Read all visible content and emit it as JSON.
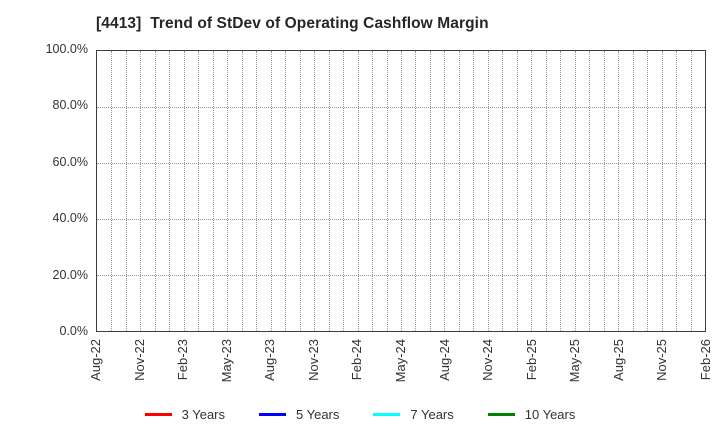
{
  "title": "[4413]  Trend of StDev of Operating Cashflow Margin",
  "chart_data": {
    "type": "line",
    "title": "[4413]  Trend of StDev of Operating Cashflow Margin",
    "x_tick_labels": [
      "Aug-22",
      "Nov-22",
      "Feb-23",
      "May-23",
      "Aug-23",
      "Nov-23",
      "Feb-24",
      "May-24",
      "Aug-24",
      "Nov-24",
      "Feb-25",
      "May-25",
      "Aug-25",
      "Nov-25",
      "Feb-26"
    ],
    "x_months_total": 42,
    "x_tick_every_months": 3,
    "y_tick_labels": [
      "0.0%",
      "20.0%",
      "40.0%",
      "60.0%",
      "80.0%",
      "100.0%"
    ],
    "ylim": [
      0,
      100
    ],
    "grid": true,
    "grid_style": "dotted",
    "legend_position": "bottom",
    "series": [
      {
        "name": "3 Years",
        "color": "#ff0000",
        "values": []
      },
      {
        "name": "5 Years",
        "color": "#0000ff",
        "values": []
      },
      {
        "name": "7 Years",
        "color": "#00ffff",
        "values": []
      },
      {
        "name": "10 Years",
        "color": "#008000",
        "values": []
      }
    ],
    "colors": {
      "grid": "#9a9a9a",
      "axis_border": "#3d3d3d",
      "text": "#333333",
      "title_text": "#262626",
      "background": "#ffffff"
    }
  }
}
